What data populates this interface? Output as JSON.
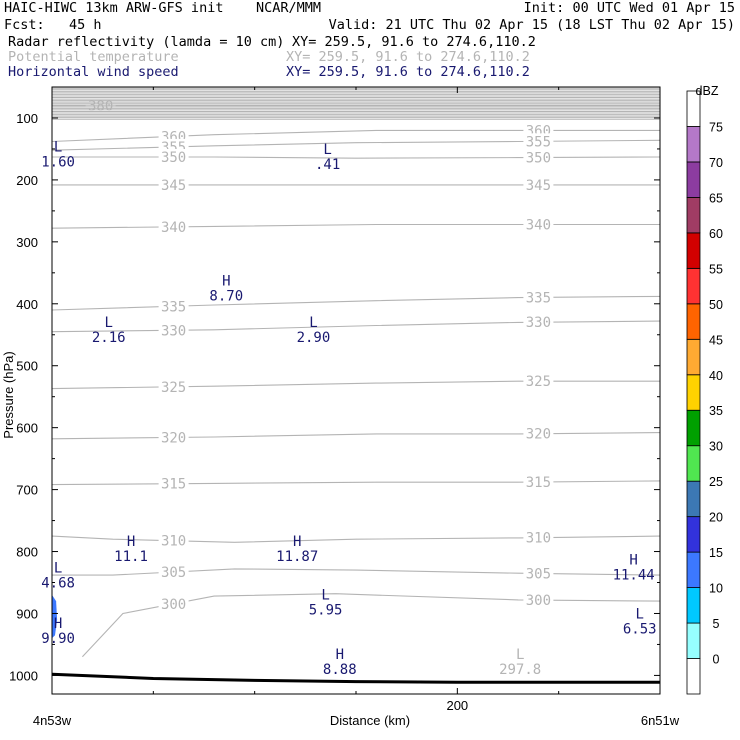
{
  "header": {
    "line1_left": "HAIC-HIWC 13km ARW-GFS init    NCAR/MMM",
    "line1_right": "Init: 00 UTC Wed 01 Apr 15",
    "line2_left": "Fcst:   45 h",
    "line2_right": "Valid: 21 UTC Thu 02 Apr 15 (18 LST Thu 02 Apr 15)",
    "fields": [
      {
        "name": "Radar reflectivity (lamda = 10 cm)",
        "xy": "XY= 259.5, 91.6 to 274.6,110.2",
        "color": "#000000"
      },
      {
        "name": "Potential temperature",
        "xy": "XY= 259.5, 91.6 to 274.6,110.2",
        "color": "#b4b4b4"
      },
      {
        "name": "Horizontal wind speed",
        "xy": "XY= 259.5, 91.6 to 274.6,110.2",
        "color": "#191970"
      }
    ]
  },
  "chart_data": {
    "type": "cross-section",
    "ylabel": "Pressure (hPa)",
    "xlabel": "Distance (km)",
    "x_left_label": "4n53w",
    "x_right_label": "6n51w",
    "xlim": [
      0,
      300
    ],
    "ylim": [
      50,
      1030
    ],
    "xticks": [
      {
        "value": 200,
        "label": "200"
      }
    ],
    "yticks": [
      100,
      200,
      300,
      400,
      500,
      600,
      700,
      800,
      900,
      1000
    ],
    "colorbar": {
      "unit": "dBZ",
      "levels": [
        0,
        5,
        10,
        15,
        20,
        25,
        30,
        35,
        40,
        45,
        50,
        55,
        60,
        65,
        70,
        75
      ],
      "colors": [
        "#ffffff",
        "#96ffff",
        "#00c8ff",
        "#3c78ff",
        "#3232dc",
        "#3c78b4",
        "#50e650",
        "#00a000",
        "#ffd200",
        "#ffaa32",
        "#ff6400",
        "#ff3232",
        "#d20000",
        "#a03c64",
        "#8c3ca0",
        "#b478c8",
        "#ffffff"
      ]
    },
    "terrain": [
      [
        0,
        998
      ],
      [
        50,
        1005
      ],
      [
        100,
        1008
      ],
      [
        150,
        1010
      ],
      [
        200,
        1011
      ],
      [
        250,
        1011
      ],
      [
        300,
        1011
      ]
    ],
    "isentropes": [
      {
        "theta": 380,
        "labels": [
          "380"
        ],
        "points": [
          [
            0,
            80
          ],
          [
            300,
            80
          ]
        ]
      },
      {
        "theta": 360,
        "labels": [
          "360",
          "360"
        ],
        "points": [
          [
            0,
            138
          ],
          [
            80,
            127
          ],
          [
            160,
            120
          ],
          [
            250,
            120
          ],
          [
            300,
            120
          ]
        ]
      },
      {
        "theta": 355,
        "labels": [
          "355",
          "355"
        ],
        "points": [
          [
            0,
            152
          ],
          [
            80,
            145
          ],
          [
            150,
            140
          ],
          [
            230,
            138
          ],
          [
            300,
            136
          ]
        ]
      },
      {
        "theta": 350,
        "labels": [
          "350",
          "350"
        ],
        "points": [
          [
            0,
            163
          ],
          [
            80,
            163
          ],
          [
            150,
            165
          ],
          [
            230,
            164
          ],
          [
            300,
            163
          ]
        ]
      },
      {
        "theta": 345,
        "labels": [
          "345",
          "345"
        ],
        "points": [
          [
            0,
            208
          ],
          [
            80,
            208
          ],
          [
            160,
            208
          ],
          [
            230,
            208
          ],
          [
            300,
            208
          ]
        ]
      },
      {
        "theta": 340,
        "labels": [
          "340",
          "340"
        ],
        "points": [
          [
            0,
            278
          ],
          [
            80,
            275
          ],
          [
            160,
            272
          ],
          [
            230,
            272
          ],
          [
            300,
            272
          ]
        ]
      },
      {
        "theta": 335,
        "labels": [
          "335",
          "335"
        ],
        "points": [
          [
            0,
            410
          ],
          [
            80,
            402
          ],
          [
            160,
            395
          ],
          [
            230,
            390
          ],
          [
            300,
            388
          ]
        ]
      },
      {
        "theta": 330,
        "labels": [
          "330",
          "330"
        ],
        "points": [
          [
            0,
            445
          ],
          [
            80,
            442
          ],
          [
            160,
            435
          ],
          [
            230,
            430
          ],
          [
            300,
            428
          ]
        ]
      },
      {
        "theta": 325,
        "labels": [
          "325",
          "325"
        ],
        "points": [
          [
            0,
            537
          ],
          [
            80,
            533
          ],
          [
            160,
            528
          ],
          [
            230,
            525
          ],
          [
            300,
            525
          ]
        ]
      },
      {
        "theta": 320,
        "labels": [
          "320",
          "320"
        ],
        "points": [
          [
            0,
            618
          ],
          [
            80,
            615
          ],
          [
            160,
            610
          ],
          [
            230,
            610
          ],
          [
            300,
            608
          ]
        ]
      },
      {
        "theta": 315,
        "labels": [
          "315",
          "315"
        ],
        "points": [
          [
            0,
            692
          ],
          [
            80,
            690
          ],
          [
            160,
            688
          ],
          [
            230,
            688
          ],
          [
            300,
            686
          ]
        ]
      },
      {
        "theta": 310,
        "labels": [
          "310",
          "310"
        ],
        "points": [
          [
            0,
            775
          ],
          [
            30,
            780
          ],
          [
            90,
            785
          ],
          [
            150,
            780
          ],
          [
            230,
            778
          ],
          [
            300,
            775
          ]
        ]
      },
      {
        "theta": 305,
        "labels": [
          "305",
          "305"
        ],
        "points": [
          [
            0,
            838
          ],
          [
            30,
            838
          ],
          [
            90,
            828
          ],
          [
            150,
            830
          ],
          [
            230,
            835
          ],
          [
            300,
            838
          ]
        ]
      },
      {
        "theta": 300,
        "labels": [
          "300",
          "300"
        ],
        "points": [
          [
            15,
            970
          ],
          [
            35,
            900
          ],
          [
            80,
            872
          ],
          [
            140,
            868
          ],
          [
            230,
            878
          ],
          [
            300,
            880
          ]
        ]
      }
    ],
    "wind_extrema": [
      {
        "type": "L",
        "value": "1.60",
        "x": 3,
        "p": 178
      },
      {
        "type": "L",
        "value": ".41",
        "x": 136,
        "p": 182
      },
      {
        "type": "H",
        "value": "8.70",
        "x": 86,
        "p": 395
      },
      {
        "type": "L",
        "value": "2.16",
        "x": 28,
        "p": 462
      },
      {
        "type": "L",
        "value": "2.90",
        "x": 129,
        "p": 462
      },
      {
        "type": "L",
        "value": "4.68",
        "x": 3,
        "p": 858
      },
      {
        "type": "H",
        "value": "11.1",
        "x": 39,
        "p": 815
      },
      {
        "type": "H",
        "value": "11.87",
        "x": 121,
        "p": 815
      },
      {
        "type": "H",
        "value": "11.44",
        "x": 287,
        "p": 845
      },
      {
        "type": "L",
        "value": "5.95",
        "x": 135,
        "p": 902
      },
      {
        "type": "H",
        "value": "9.90",
        "x": 3,
        "p": 948
      },
      {
        "type": "L",
        "value": "6.53",
        "x": 290,
        "p": 932
      },
      {
        "type": "H",
        "value": "8.88",
        "x": 142,
        "p": 998
      }
    ],
    "theta_extrema": [
      {
        "type": "L",
        "value": "297.8",
        "x": 231,
        "p": 998
      }
    ],
    "reflectivity_patches": [
      {
        "dbz": 10,
        "polygon": [
          [
            0,
            870
          ],
          [
            2,
            880
          ],
          [
            2.5,
            910
          ],
          [
            1.5,
            935
          ],
          [
            0,
            940
          ]
        ]
      }
    ]
  }
}
